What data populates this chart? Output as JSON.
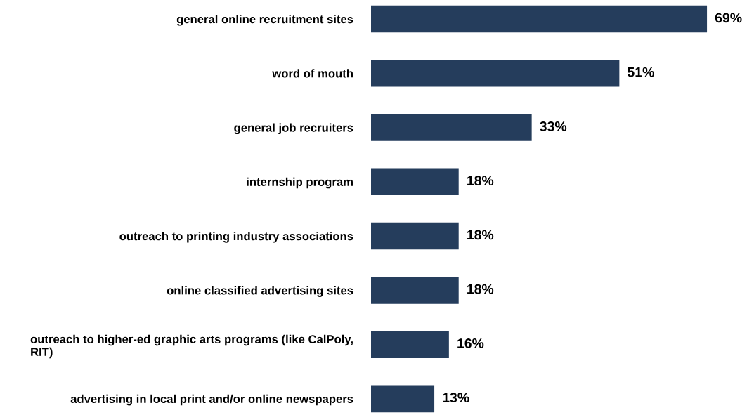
{
  "chart_data": {
    "type": "bar",
    "orientation": "horizontal",
    "categories": [
      "general online recruitment sites",
      "word of mouth",
      "general job recruiters",
      "internship program",
      "outreach to printing industry associations",
      "online classified advertising sites",
      "outreach to higher-ed graphic arts programs (like CalPoly,\nRIT)",
      "advertising in local print and/or online newspapers"
    ],
    "values": [
      69,
      51,
      33,
      18,
      18,
      18,
      16,
      13
    ],
    "value_labels": [
      "69%",
      "51%",
      "33%",
      "18%",
      "18%",
      "18%",
      "16%",
      "13%"
    ],
    "color": "#253d5c"
  }
}
